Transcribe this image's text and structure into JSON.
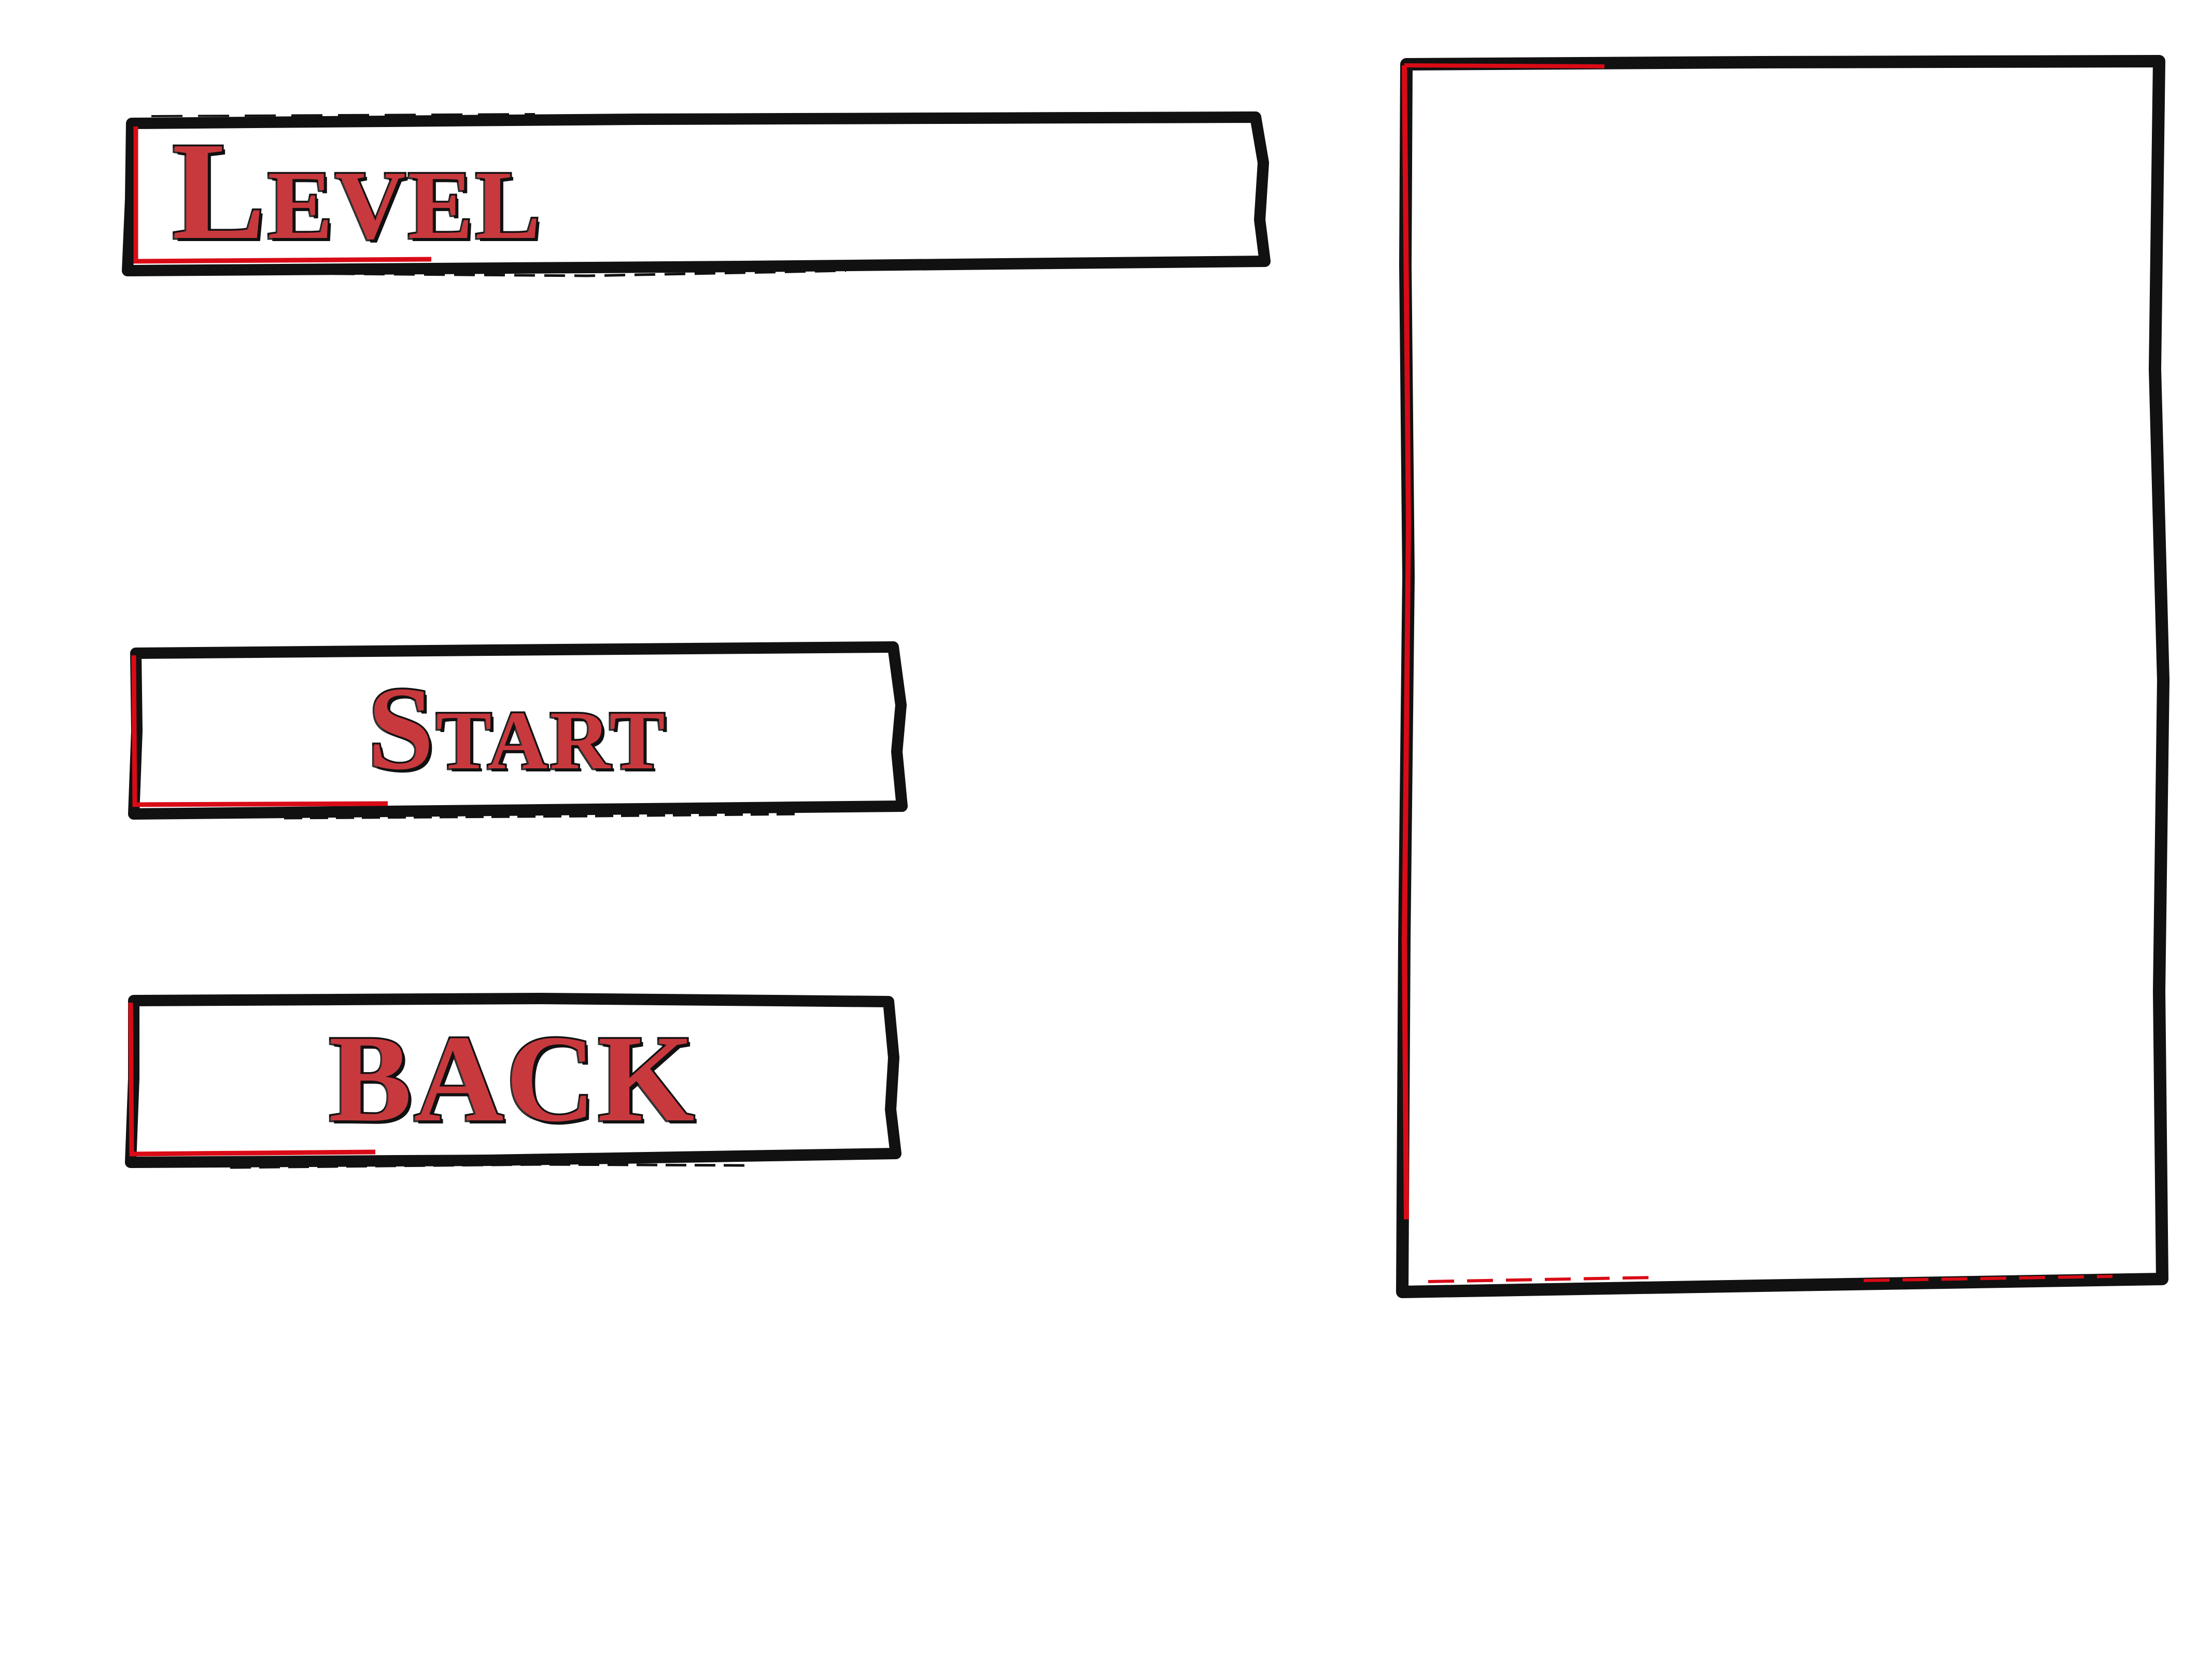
{
  "screen": "level-select",
  "level_title": {
    "label": "Level"
  },
  "buttons": {
    "start_label": "Start",
    "back_label": "BACK"
  },
  "preview_panel": {
    "content": ""
  },
  "colors": {
    "background": "#ffffff",
    "border_outer": "#111111",
    "border_accent": "#d90b16",
    "text_fill": "#c8393e",
    "text_outline": "#111111"
  }
}
